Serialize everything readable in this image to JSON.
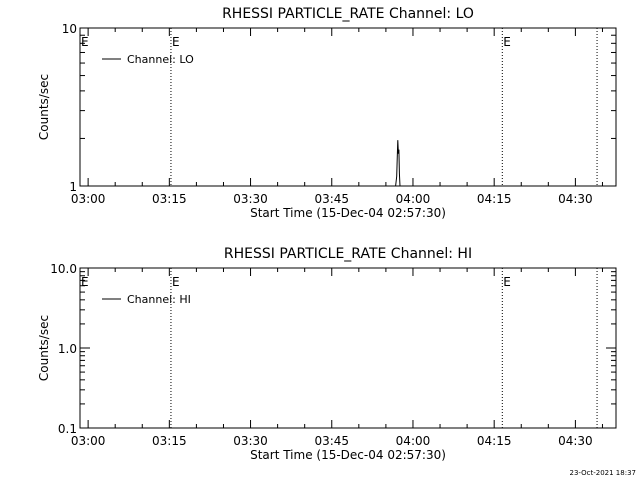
{
  "chart_data": [
    {
      "type": "line",
      "title": "RHESSI PARTICLE_RATE Channel: LO",
      "xlabel": "Start Time (15-Dec-04 02:57:30)",
      "ylabel": "Counts/sec",
      "yscale": "log",
      "ylim": [
        1,
        10
      ],
      "y_tick_labels": [
        "1",
        "10"
      ],
      "x_tick_labels": [
        "03:00",
        "03:15",
        "03:30",
        "03:45",
        "04:00",
        "04:15",
        "04:30"
      ],
      "xlim_minutes": [
        -1.5,
        97.5
      ],
      "x_tick_minutes": [
        0,
        15,
        30,
        45,
        60,
        75,
        90
      ],
      "legend": {
        "position": "top-left",
        "label": "Channel: LO"
      },
      "event_markers": [
        {
          "minute": 15.3,
          "label": "E"
        },
        {
          "minute": 76.5,
          "label": "E"
        },
        {
          "minute": 94.0,
          "label": ""
        }
      ],
      "edge_marker": "E",
      "series": [
        {
          "x": [
            56.5,
            56.8,
            57.0,
            57.1,
            57.2,
            57.3,
            57.4,
            57.5,
            57.6,
            57.8
          ],
          "y": [
            1.0,
            1.0,
            1.15,
            1.55,
            1.95,
            1.6,
            1.7,
            1.2,
            1.0,
            1.0
          ]
        }
      ],
      "grid": false
    },
    {
      "type": "line",
      "title": "RHESSI PARTICLE_RATE Channel: HI",
      "xlabel": "Start Time (15-Dec-04 02:57:30)",
      "ylabel": "Counts/sec",
      "yscale": "log",
      "ylim": [
        0.1,
        10
      ],
      "y_tick_labels": [
        "0.1",
        "1.0",
        "10.0"
      ],
      "x_tick_labels": [
        "03:00",
        "03:15",
        "03:30",
        "03:45",
        "04:00",
        "04:15",
        "04:30"
      ],
      "xlim_minutes": [
        -1.5,
        97.5
      ],
      "x_tick_minutes": [
        0,
        15,
        30,
        45,
        60,
        75,
        90
      ],
      "legend": {
        "position": "top-left",
        "label": "Channel: HI"
      },
      "event_markers": [
        {
          "minute": 15.3,
          "label": "E"
        },
        {
          "minute": 76.5,
          "label": "E"
        },
        {
          "minute": 94.0,
          "label": ""
        }
      ],
      "edge_marker": "E",
      "series": [],
      "grid": false
    }
  ],
  "footer_timestamp": "23-Oct-2021 18:37"
}
